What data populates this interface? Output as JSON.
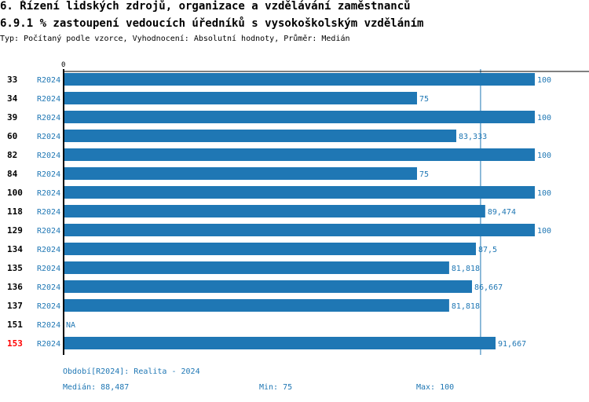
{
  "header": {
    "title": "6. Řízení lidských zdrojů, organizace a vzdělávání zaměstnanců",
    "subtitle": "6.9.1 % zastoupení vedoucích úředníků s vysokoškolským vzděláním",
    "meta": "Typ: Počítaný podle vzorce, Vyhodnocení: Absolutní hodnoty, Průměr: Medián"
  },
  "chart_data": {
    "type": "bar",
    "orientation": "horizontal",
    "xlim": [
      0,
      100
    ],
    "axis_tick": "0",
    "median_line": 88.487,
    "categories": [
      "33",
      "34",
      "39",
      "60",
      "82",
      "84",
      "100",
      "118",
      "129",
      "134",
      "135",
      "136",
      "137",
      "151",
      "153"
    ],
    "highlight": "153",
    "period": "R2024",
    "values": [
      100,
      75,
      100,
      83.333,
      100,
      75,
      100,
      89.474,
      100,
      87.5,
      81.818,
      86.667,
      81.818,
      null,
      91.667
    ],
    "labels": [
      "100",
      "75",
      "100",
      "83,333",
      "100",
      "75",
      "100",
      "89,474",
      "100",
      "87,5",
      "81,818",
      "86,667",
      "81,818",
      "NA",
      "91,667"
    ],
    "colors": {
      "bar": "#1f77b4",
      "highlight": "#ff0000"
    }
  },
  "footer": {
    "period": "Období[R2024]: Realita - 2024",
    "median": "Medián: 88,487",
    "min": "Min: 75",
    "max": "Max: 100"
  }
}
